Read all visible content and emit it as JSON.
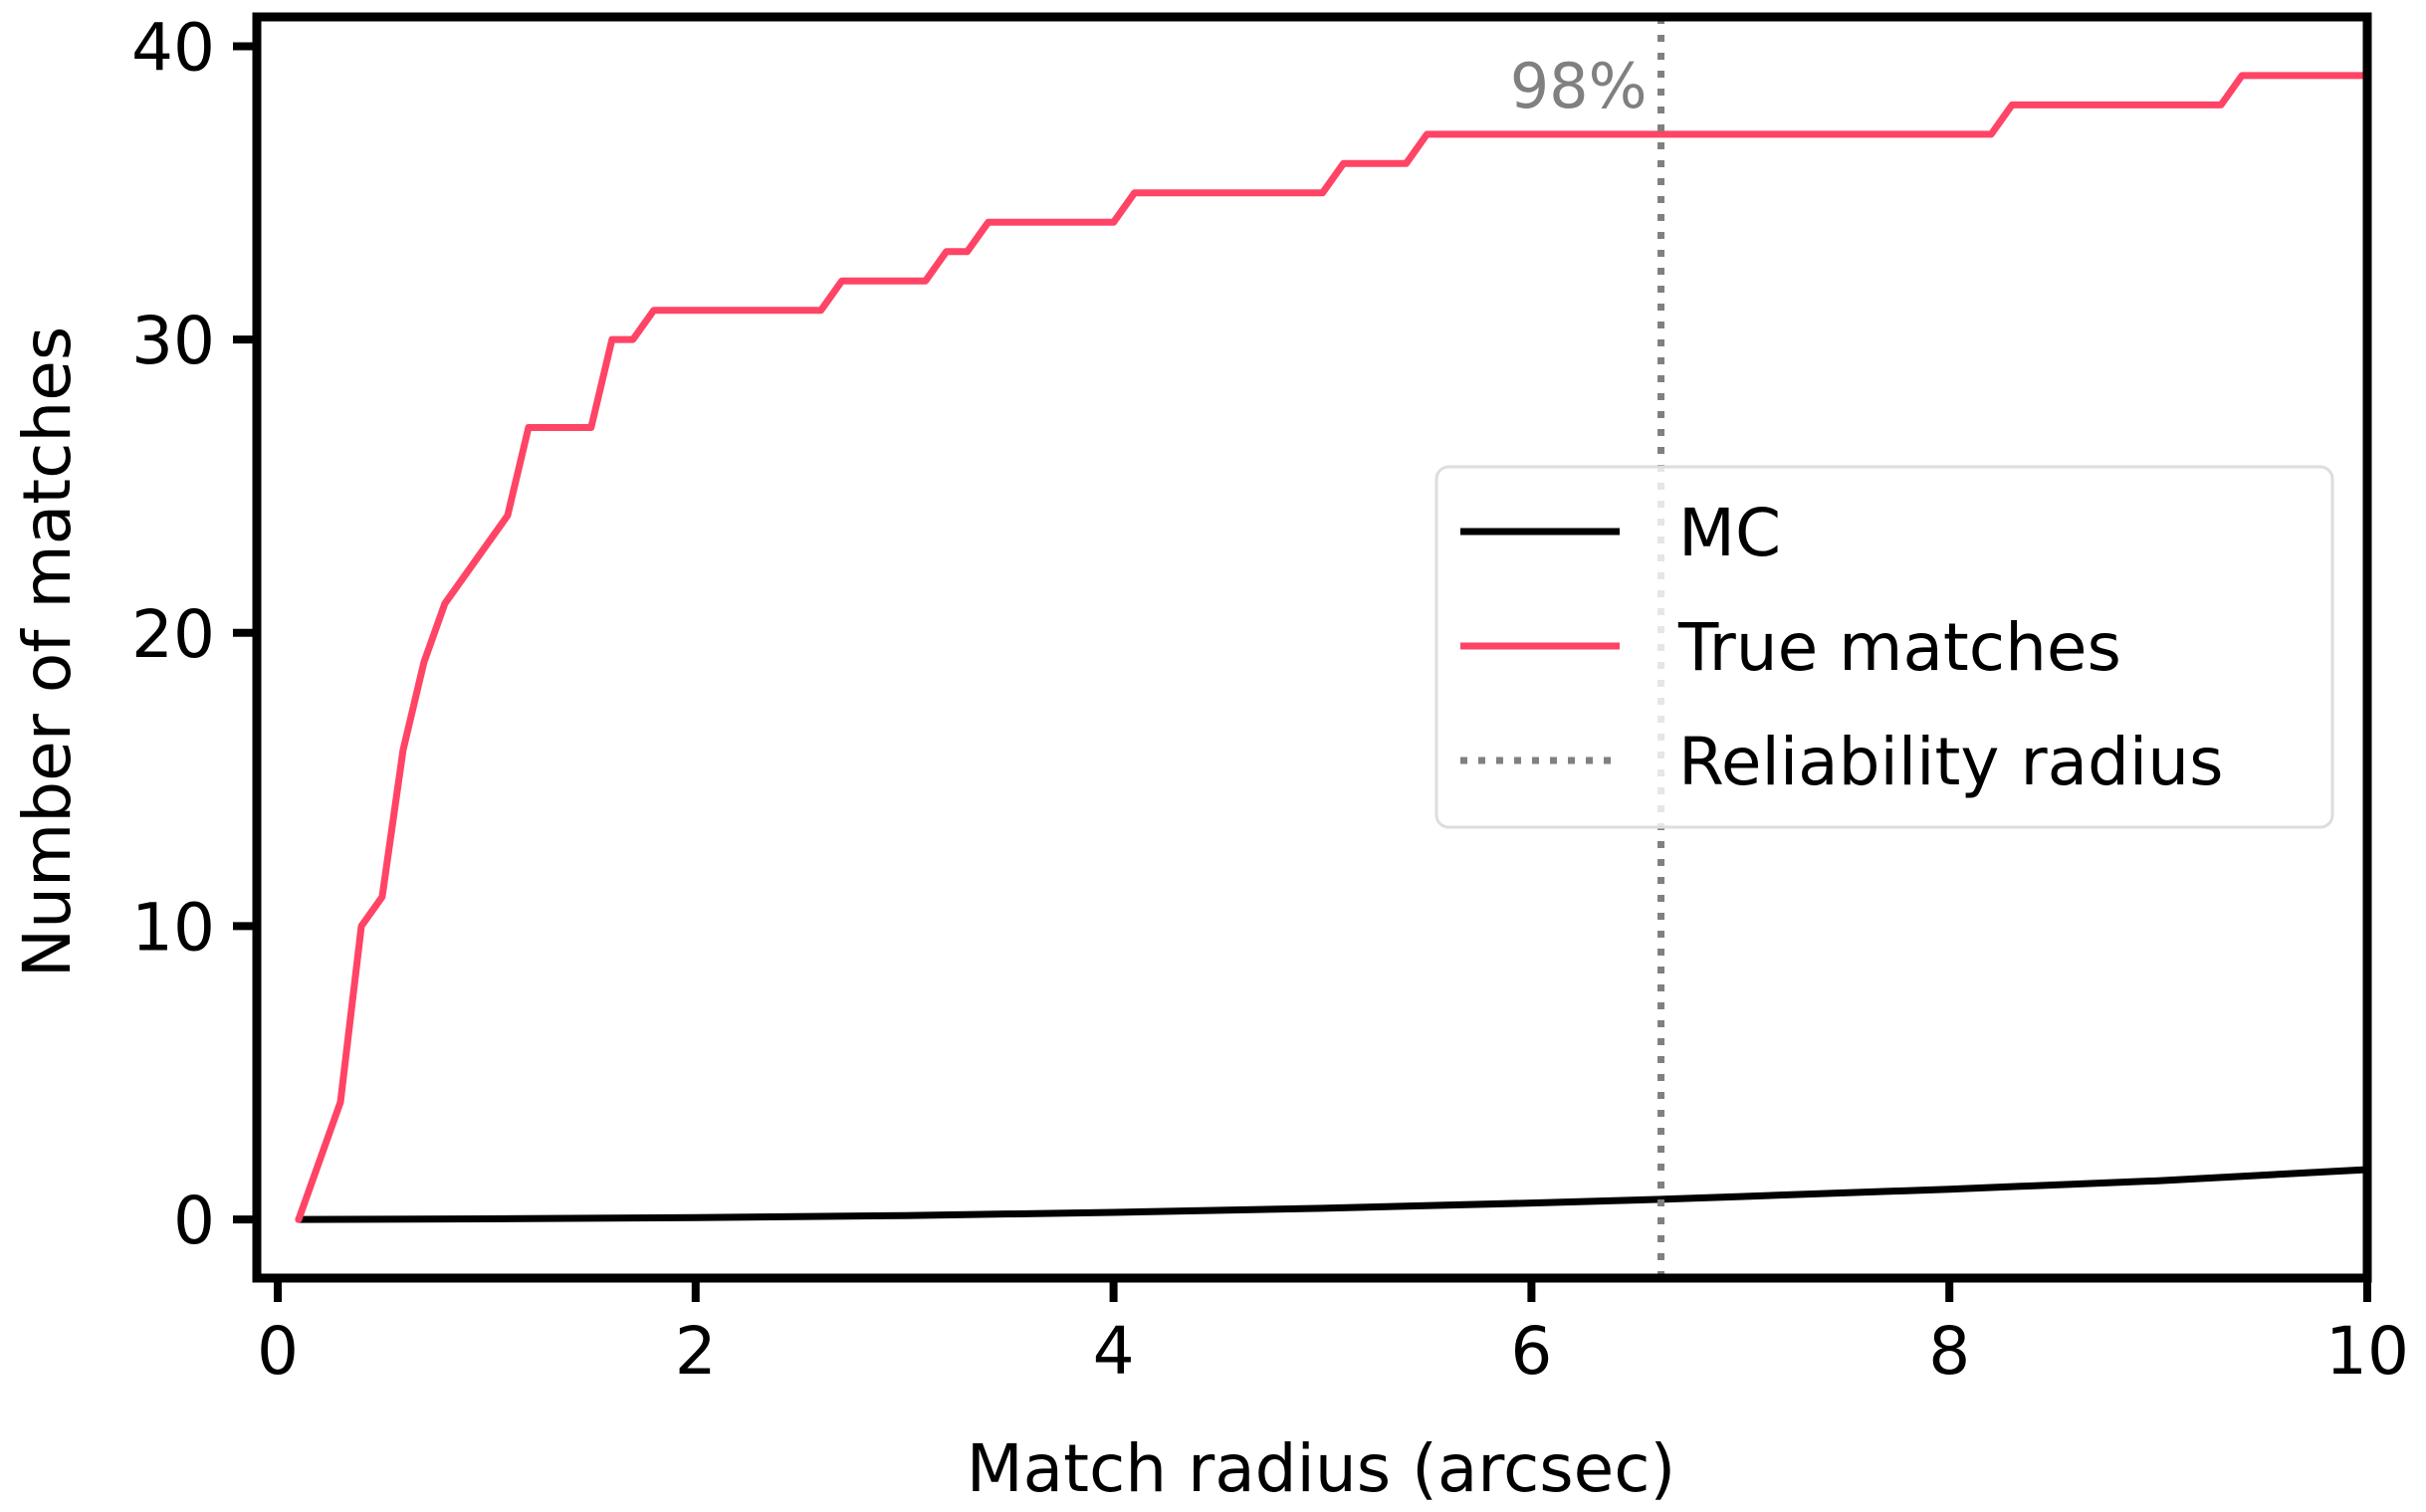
{
  "chart_data": {
    "type": "line",
    "title": "",
    "xlabel": "Match radius (arcsec)",
    "ylabel": "Number of matches",
    "xlim": [
      -0.1,
      10
    ],
    "ylim": [
      -2,
      41
    ],
    "xticks": [
      0,
      2,
      4,
      6,
      8,
      10
    ],
    "xtick_labels": [
      "0",
      "2",
      "4",
      "6",
      "8",
      "10"
    ],
    "yticks": [
      0,
      10,
      20,
      30,
      40
    ],
    "ytick_labels": [
      "0",
      "10",
      "20",
      "30",
      "40"
    ],
    "grid": false,
    "legend_position": "center-right",
    "series": [
      {
        "name": "MC",
        "color": "#000000",
        "style": "solid",
        "x": [
          0.1,
          1,
          2,
          3,
          4,
          5,
          6,
          6.6,
          7,
          8,
          9,
          10
        ],
        "y": [
          0,
          0.02,
          0.06,
          0.13,
          0.24,
          0.38,
          0.56,
          0.68,
          0.78,
          1.03,
          1.32,
          1.7
        ]
      },
      {
        "name": "True matches",
        "color": "#ff4466",
        "style": "solid",
        "x": [
          0.1,
          0.3,
          0.4,
          0.5,
          0.6,
          0.7,
          0.8,
          1.1,
          1.2,
          1.5,
          1.6,
          1.7,
          1.8,
          2.6,
          2.7,
          3.1,
          3.2,
          3.3,
          3.4,
          3.5,
          4,
          4.1,
          5,
          5.1,
          5.4,
          5.5,
          8.2,
          8.3,
          9.3,
          9.4,
          10
        ],
        "y": [
          0,
          4,
          10,
          11,
          16,
          19,
          21,
          24,
          27,
          27,
          30,
          30,
          31,
          31,
          32,
          32,
          33,
          33,
          34,
          34,
          34,
          35,
          35,
          36,
          36,
          37,
          37,
          38,
          38,
          39,
          39
        ]
      },
      {
        "name": "Reliability radius",
        "color": "#808080",
        "style": "dotted",
        "x_value": 6.62
      }
    ],
    "annotations": [
      {
        "text": "98%",
        "x": 6.62,
        "y": 38.8
      }
    ]
  }
}
